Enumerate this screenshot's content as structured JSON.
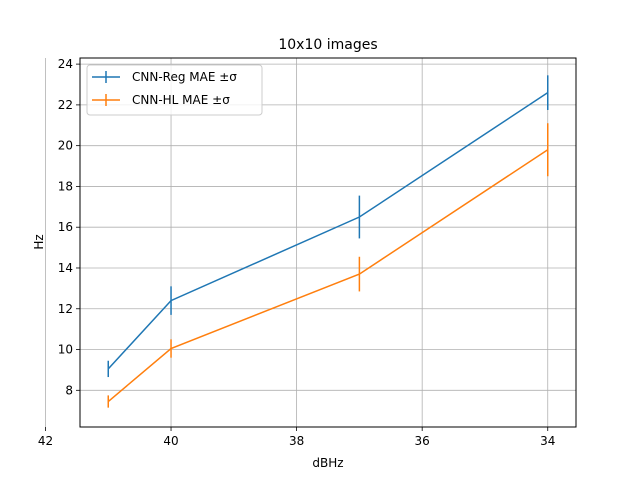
{
  "chart_data": {
    "type": "line",
    "title": "10x10 images",
    "xlabel": "dBHz",
    "ylabel": "Hz",
    "x": [
      41,
      40,
      37,
      34
    ],
    "xlim": [
      41.45,
      33.55
    ],
    "x_reversed": true,
    "ylim": [
      6.2,
      24.3
    ],
    "xticks": [
      42,
      40,
      38,
      36,
      34
    ],
    "yticks": [
      8,
      10,
      12,
      14,
      16,
      18,
      20,
      22,
      24
    ],
    "grid": true,
    "legend_position": "upper-left",
    "series": [
      {
        "name": "CNN-Reg MAE ±σ",
        "color": "#1f77b4",
        "values": [
          9.05,
          12.4,
          16.5,
          22.6
        ],
        "errors": [
          0.4,
          0.7,
          1.05,
          0.85
        ]
      },
      {
        "name": "CNN-HL MAE ±σ",
        "color": "#ff7f0e",
        "values": [
          7.45,
          10.05,
          13.7,
          19.8
        ],
        "errors": [
          0.3,
          0.45,
          0.85,
          1.3
        ]
      }
    ]
  }
}
